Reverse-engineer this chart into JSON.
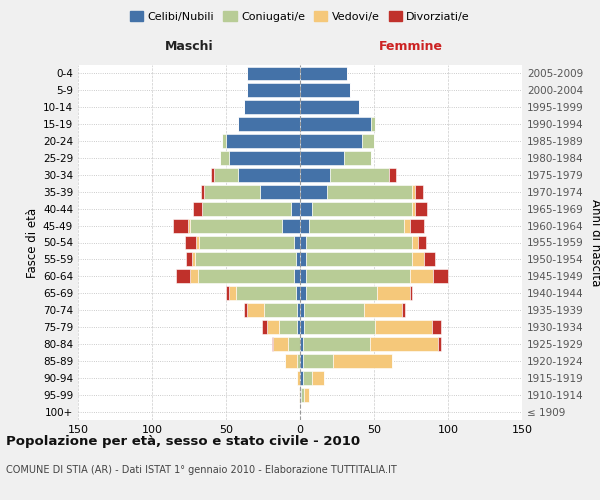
{
  "age_groups": [
    "100+",
    "95-99",
    "90-94",
    "85-89",
    "80-84",
    "75-79",
    "70-74",
    "65-69",
    "60-64",
    "55-59",
    "50-54",
    "45-49",
    "40-44",
    "35-39",
    "30-34",
    "25-29",
    "20-24",
    "15-19",
    "10-14",
    "5-9",
    "0-4"
  ],
  "birth_years": [
    "≤ 1909",
    "1910-1914",
    "1915-1919",
    "1920-1924",
    "1925-1929",
    "1930-1934",
    "1935-1939",
    "1940-1944",
    "1945-1949",
    "1950-1954",
    "1955-1959",
    "1960-1964",
    "1965-1969",
    "1970-1974",
    "1975-1979",
    "1980-1984",
    "1985-1989",
    "1990-1994",
    "1995-1999",
    "2000-2004",
    "2005-2009"
  ],
  "male": {
    "celibi": [
      0,
      0,
      0,
      0,
      0,
      2,
      2,
      3,
      4,
      3,
      4,
      12,
      6,
      27,
      42,
      48,
      50,
      42,
      38,
      36,
      36
    ],
    "coniugati": [
      0,
      0,
      0,
      2,
      8,
      12,
      22,
      40,
      65,
      68,
      64,
      62,
      60,
      38,
      16,
      6,
      3,
      0,
      0,
      0,
      0
    ],
    "vedovi": [
      0,
      1,
      2,
      8,
      10,
      8,
      12,
      5,
      5,
      2,
      2,
      2,
      0,
      0,
      0,
      0,
      0,
      0,
      0,
      0,
      0
    ],
    "divorziati": [
      0,
      0,
      0,
      0,
      1,
      4,
      2,
      2,
      10,
      4,
      8,
      10,
      6,
      2,
      2,
      0,
      0,
      0,
      0,
      0,
      0
    ]
  },
  "female": {
    "nubili": [
      0,
      1,
      2,
      2,
      2,
      3,
      3,
      4,
      4,
      4,
      4,
      6,
      8,
      18,
      20,
      30,
      42,
      48,
      40,
      34,
      32
    ],
    "coniugate": [
      0,
      2,
      6,
      20,
      45,
      48,
      40,
      48,
      70,
      72,
      72,
      64,
      68,
      58,
      40,
      18,
      8,
      3,
      0,
      0,
      0
    ],
    "vedove": [
      0,
      3,
      8,
      40,
      46,
      38,
      26,
      22,
      16,
      8,
      4,
      4,
      2,
      2,
      0,
      0,
      0,
      0,
      0,
      0,
      0
    ],
    "divorziate": [
      0,
      0,
      0,
      0,
      2,
      6,
      2,
      2,
      10,
      7,
      5,
      10,
      8,
      5,
      5,
      0,
      0,
      0,
      0,
      0,
      0
    ]
  },
  "colors": {
    "celibi": "#4472a8",
    "coniugati": "#b8cc96",
    "vedovi": "#f5c87a",
    "divorziati": "#c0312b"
  },
  "title": "Popolazione per età, sesso e stato civile - 2010",
  "subtitle": "COMUNE DI STIA (AR) - Dati ISTAT 1° gennaio 2010 - Elaborazione TUTTITALIA.IT",
  "xlabel_left": "Maschi",
  "xlabel_right": "Femmine",
  "ylabel_left": "Fasce di età",
  "ylabel_right": "Anni di nascita",
  "xlim": 150,
  "bg_color": "#f0f0f0",
  "plot_bg_color": "#ffffff",
  "legend_labels": [
    "Celibi/Nubili",
    "Coniugati/e",
    "Vedovi/e",
    "Divorziati/e"
  ]
}
